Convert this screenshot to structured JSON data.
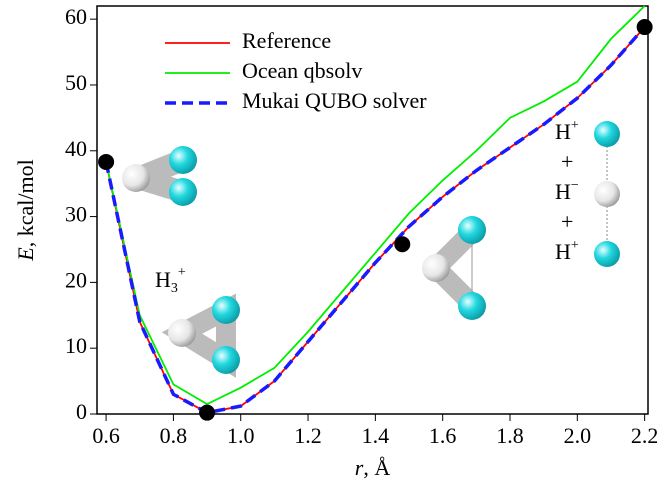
{
  "chart_data": {
    "type": "line",
    "xlabel": {
      "var": "r",
      "rest": ", Å"
    },
    "ylabel": {
      "var": "E",
      "rest": ", kcal/mol"
    },
    "x": [
      0.6,
      0.7,
      0.8,
      0.9,
      1.0,
      1.1,
      1.2,
      1.3,
      1.4,
      1.5,
      1.6,
      1.7,
      1.8,
      1.9,
      2.0,
      2.1,
      2.2
    ],
    "series": [
      {
        "name": "Reference",
        "color": "#ff0000",
        "dash": false,
        "values": [
          38.3,
          14,
          3,
          0.2,
          1.2,
          5,
          11,
          17,
          23,
          28.5,
          33,
          37,
          40.5,
          44,
          48,
          53,
          58.8
        ]
      },
      {
        "name": "Ocean qbsolv",
        "color": "#00ee00",
        "dash": false,
        "values": [
          38.3,
          15,
          4.5,
          1.5,
          4,
          7,
          12.5,
          18.5,
          24.5,
          30.5,
          35.5,
          40,
          45,
          47.5,
          50.5,
          57,
          62
        ]
      },
      {
        "name": "Mukai QUBO solver",
        "color": "#1a1aff",
        "dash": true,
        "values": [
          38.3,
          14,
          3,
          0.2,
          1.2,
          5,
          11,
          17,
          23,
          28.5,
          33,
          37,
          40.5,
          44,
          48,
          53,
          58.8
        ]
      }
    ],
    "highlighted_points": {
      "color": "#000000",
      "x": [
        0.6,
        0.9,
        1.48,
        2.2
      ],
      "values": [
        38.3,
        0.2,
        25.8,
        58.8
      ]
    },
    "annotations": {
      "molecule": {
        "base": "H",
        "sub": "3",
        "sup": "+"
      },
      "dissociated": [
        {
          "base": "H",
          "sup": "+"
        },
        {
          "base": "+"
        },
        {
          "base": "H",
          "sup": "−"
        },
        {
          "base": "+"
        },
        {
          "base": "H",
          "sup": "+"
        }
      ]
    },
    "xlim": [
      0.573,
      2.21
    ],
    "ylim": [
      0,
      62
    ],
    "xticks": [
      0.6,
      0.8,
      {
        "value": 1.0,
        "label": "1.0"
      },
      1.2,
      1.4,
      1.6,
      1.8,
      {
        "value": 2.0,
        "label": "2.0"
      },
      2.2
    ],
    "yticks": [
      0,
      10,
      20,
      30,
      40,
      50,
      60
    ]
  }
}
